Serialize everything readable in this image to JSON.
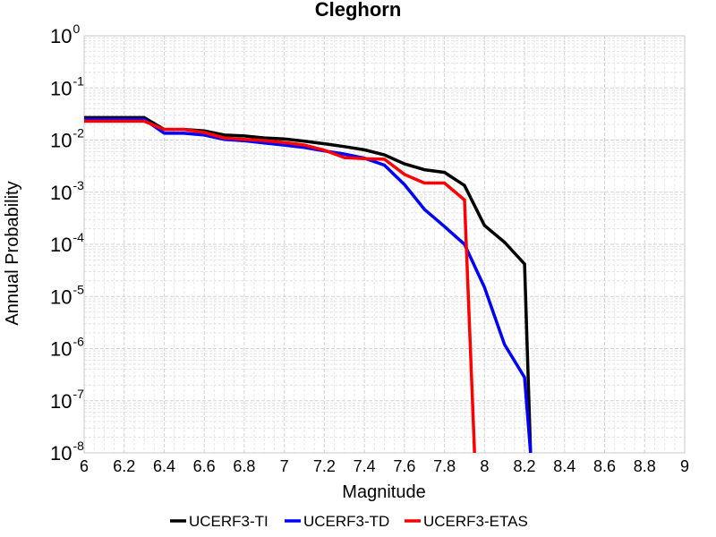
{
  "chart_data": {
    "type": "line",
    "title": "Cleghorn",
    "xlabel": "Magnitude",
    "ylabel": "Annual Probability",
    "xlim": [
      6,
      9
    ],
    "ylim": [
      1e-08,
      1
    ],
    "yscale": "log",
    "grid": true,
    "legend_position": "bottom",
    "x_ticks": [
      "6",
      "6.2",
      "6.4",
      "6.6",
      "6.8",
      "7",
      "7.2",
      "7.4",
      "7.6",
      "7.8",
      "8",
      "8.2",
      "8.4",
      "8.6",
      "8.8",
      "9"
    ],
    "y_ticks": [
      {
        "base": "10",
        "exp": "0"
      },
      {
        "base": "10",
        "exp": "-1"
      },
      {
        "base": "10",
        "exp": "-2"
      },
      {
        "base": "10",
        "exp": "-3"
      },
      {
        "base": "10",
        "exp": "-4"
      },
      {
        "base": "10",
        "exp": "-5"
      },
      {
        "base": "10",
        "exp": "-6"
      },
      {
        "base": "10",
        "exp": "-7"
      },
      {
        "base": "10",
        "exp": "-8"
      }
    ],
    "series": [
      {
        "name": "UCERF3-TI",
        "color": "#000000",
        "x": [
          6.0,
          6.1,
          6.2,
          6.3,
          6.4,
          6.5,
          6.6,
          6.7,
          6.8,
          6.9,
          7.0,
          7.1,
          7.2,
          7.3,
          7.4,
          7.5,
          7.6,
          7.7,
          7.8,
          7.9,
          8.0,
          8.1,
          8.2,
          8.23
        ],
        "y": [
          0.027,
          0.027,
          0.027,
          0.027,
          0.016,
          0.016,
          0.015,
          0.0125,
          0.012,
          0.011,
          0.0105,
          0.0095,
          0.0085,
          0.0075,
          0.0065,
          0.0052,
          0.0035,
          0.0027,
          0.0024,
          0.00135,
          0.00023,
          0.00011,
          4.2e-05,
          1e-08
        ]
      },
      {
        "name": "UCERF3-TD",
        "color": "#0000ff",
        "x": [
          6.0,
          6.1,
          6.2,
          6.3,
          6.4,
          6.5,
          6.6,
          6.7,
          6.8,
          6.9,
          7.0,
          7.1,
          7.2,
          7.3,
          7.4,
          7.5,
          7.6,
          7.7,
          7.8,
          7.9,
          8.0,
          8.1,
          8.2,
          8.23
        ],
        "y": [
          0.025,
          0.025,
          0.025,
          0.025,
          0.0135,
          0.0135,
          0.0125,
          0.0103,
          0.0097,
          0.0088,
          0.008,
          0.0072,
          0.0062,
          0.0054,
          0.0045,
          0.0033,
          0.0014,
          0.00047,
          0.00022,
          0.0001,
          1.5e-05,
          1.2e-06,
          2.8e-07,
          1e-08
        ]
      },
      {
        "name": "UCERF3-ETAS",
        "color": "#ff0000",
        "x": [
          6.0,
          6.1,
          6.2,
          6.3,
          6.4,
          6.5,
          6.6,
          6.7,
          6.8,
          6.9,
          7.0,
          7.1,
          7.2,
          7.3,
          7.4,
          7.5,
          7.6,
          7.7,
          7.8,
          7.9,
          7.95
        ],
        "y": [
          0.023,
          0.023,
          0.023,
          0.023,
          0.016,
          0.016,
          0.014,
          0.011,
          0.0103,
          0.0098,
          0.009,
          0.008,
          0.0064,
          0.0046,
          0.0044,
          0.0043,
          0.0022,
          0.0015,
          0.0015,
          0.00071,
          1e-08
        ]
      }
    ]
  }
}
